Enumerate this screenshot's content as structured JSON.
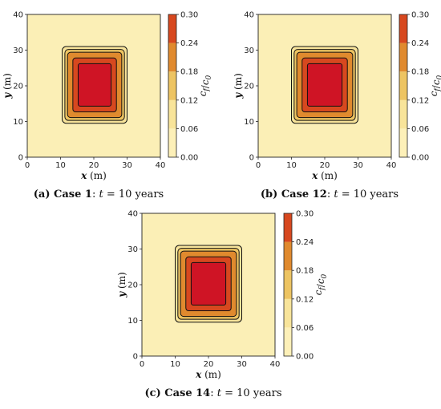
{
  "chart_data": [
    {
      "type": "heatmap",
      "caption": {
        "letter": "(a)",
        "case": "Case 1",
        "time": ": t = 10 years"
      },
      "xlabel": "x (m)",
      "ylabel": "y (m)",
      "xlim": [
        0,
        40
      ],
      "ylim": [
        0,
        40
      ],
      "xticks": [
        "0",
        "10",
        "20",
        "30",
        "40"
      ],
      "yticks": [
        "0",
        "10",
        "20",
        "30",
        "40"
      ],
      "colorbar": {
        "label": "c_f/c_0",
        "ticks": [
          "0.00",
          "0.06",
          "0.12",
          "0.18",
          "0.24",
          "0.30"
        ]
      },
      "plume": {
        "x": [
          10.5,
          30
        ],
        "y": [
          9.5,
          31
        ]
      }
    },
    {
      "type": "heatmap",
      "caption": {
        "letter": "(b)",
        "case": "Case 12",
        "time": ": t = 10 years"
      },
      "xlabel": "x (m)",
      "ylabel": "y (m)",
      "xlim": [
        0,
        40
      ],
      "ylim": [
        0,
        40
      ],
      "xticks": [
        "0",
        "10",
        "20",
        "30",
        "40"
      ],
      "yticks": [
        "0",
        "10",
        "20",
        "30",
        "40"
      ],
      "colorbar": {
        "label": "c_f/c_0",
        "ticks": [
          "0.00",
          "0.06",
          "0.12",
          "0.18",
          "0.24",
          "0.30"
        ]
      },
      "plume": {
        "x": [
          10,
          30
        ],
        "y": [
          9.5,
          31
        ]
      }
    },
    {
      "type": "heatmap",
      "caption": {
        "letter": "(c)",
        "case": "Case 14",
        "time": ": t = 10 years"
      },
      "xlabel": "x (m)",
      "ylabel": "y (m)",
      "xlim": [
        0,
        40
      ],
      "ylim": [
        0,
        40
      ],
      "xticks": [
        "0",
        "10",
        "20",
        "30",
        "40"
      ],
      "yticks": [
        "0",
        "10",
        "20",
        "30",
        "40"
      ],
      "colorbar": {
        "label": "c_f/c_0",
        "ticks": [
          "0.00",
          "0.06",
          "0.12",
          "0.18",
          "0.24",
          "0.30"
        ]
      },
      "plume": {
        "x": [
          10,
          30
        ],
        "y": [
          9.5,
          31
        ]
      }
    }
  ],
  "colors": {
    "level_bands": [
      "#fdf0b8",
      "#f8e49a",
      "#edc462",
      "#e08a2e",
      "#d7481f",
      "#a31b2b"
    ],
    "plume_core": "#cf1425",
    "background": "#fbefb6"
  }
}
